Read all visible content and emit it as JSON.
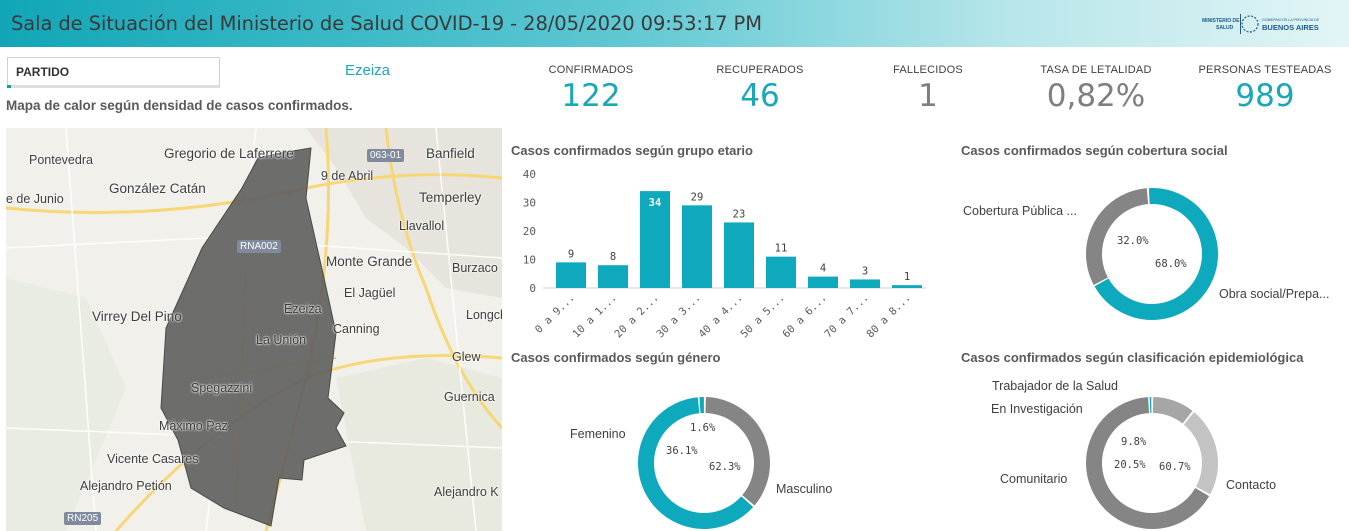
{
  "header": {
    "title": "Sala de Situación del Ministerio de Salud COVID-19 - 28/05/2020 09:53:17 PM",
    "logo_left_line1": "MINISTERIO DE",
    "logo_left_line2": "SALUD",
    "logo_right_line1": "GOBIERNO DE LA PROVINCIA DE",
    "logo_right_line2": "BUENOS AIRES"
  },
  "filter": {
    "label": "PARTIDO",
    "selected": "Ezeiza"
  },
  "kpis": [
    {
      "label": "CONFIRMADOS",
      "value": "122",
      "color": "#1aa7b8"
    },
    {
      "label": "RECUPERADOS",
      "value": "46",
      "color": "#1aa7b8"
    },
    {
      "label": "FALLECIDOS",
      "value": "1",
      "color": "#7f7f7f"
    },
    {
      "label": "TASA DE LETALIDAD",
      "value": "0,82%",
      "color": "#7f7f7f"
    },
    {
      "label": "PERSONAS TESTEADAS",
      "value": "989",
      "color": "#1aa7b8"
    }
  ],
  "map": {
    "title": "Mapa de calor según densidad de casos confirmados.",
    "places": [
      "Pontevedra",
      "Gregorio de Laferrere",
      "Banfield",
      "González Catán",
      "9 de Abril",
      "e de Junio",
      "Temperley",
      "Llavallol",
      "Monte Grande",
      "Burzaco",
      "El Jagüel",
      "Virrey Del Pino",
      "Ezeiza",
      "Canning",
      "Longch",
      "La Unión",
      "Glew",
      "Spegazzini",
      "Guernica",
      "Máximo Paz",
      "Vicente Casares",
      "Alejandro Petión",
      "Alejandro K"
    ],
    "roads": [
      "063-01",
      "RNA002",
      "RN205"
    ]
  },
  "charts": {
    "age": {
      "title": "Casos confirmados según grupo etario"
    },
    "coverage": {
      "title": "Casos confirmados según cobertura social"
    },
    "gender": {
      "title": "Casos confirmados según género"
    },
    "epi": {
      "title": "Casos confirmados según clasificación epidemiológica"
    }
  },
  "chart_data": [
    {
      "type": "bar",
      "title": "Casos confirmados según grupo etario",
      "categories": [
        "0 a 9...",
        "10 a 1...",
        "20 a 2...",
        "30 a 3...",
        "40 a 4...",
        "50 a 5...",
        "60 a 6...",
        "70 a 7...",
        "80 a 8..."
      ],
      "values": [
        9,
        8,
        34,
        29,
        23,
        11,
        4,
        3,
        1
      ],
      "ylim": [
        0,
        40
      ],
      "yticks": [
        0,
        10,
        20,
        30,
        40
      ],
      "color": "#0fa9bd"
    },
    {
      "type": "pie",
      "title": "Casos confirmados según cobertura social",
      "labels": [
        "Cobertura Pública ...",
        "Obra social/Prepa..."
      ],
      "values": [
        32.0,
        68.0
      ],
      "pct_labels": [
        "32.0%",
        "68.0%"
      ],
      "colors": [
        "#858585",
        "#0fa9bd"
      ]
    },
    {
      "type": "pie",
      "title": "Casos confirmados según género",
      "labels": [
        "",
        "Femenino",
        "Masculino"
      ],
      "values": [
        1.6,
        36.1,
        62.3
      ],
      "pct_labels": [
        "1.6%",
        "36.1%",
        "62.3%"
      ],
      "colors": [
        "#0fa9bd",
        "#858585",
        "#0fa9bd"
      ]
    },
    {
      "type": "pie",
      "title": "Casos confirmados según clasificación epidemiológica",
      "labels": [
        "Trabajador de la Salud",
        "En Investigación",
        "Comunitario",
        "Contacto"
      ],
      "values": [
        0.8,
        9.8,
        20.5,
        60.7
      ],
      "pct_labels": [
        "",
        "9.8%",
        "20.5%",
        "60.7%"
      ],
      "colors": [
        "#0fa9bd",
        "#a6a6a6",
        "#c3c3c3",
        "#858585"
      ]
    }
  ]
}
